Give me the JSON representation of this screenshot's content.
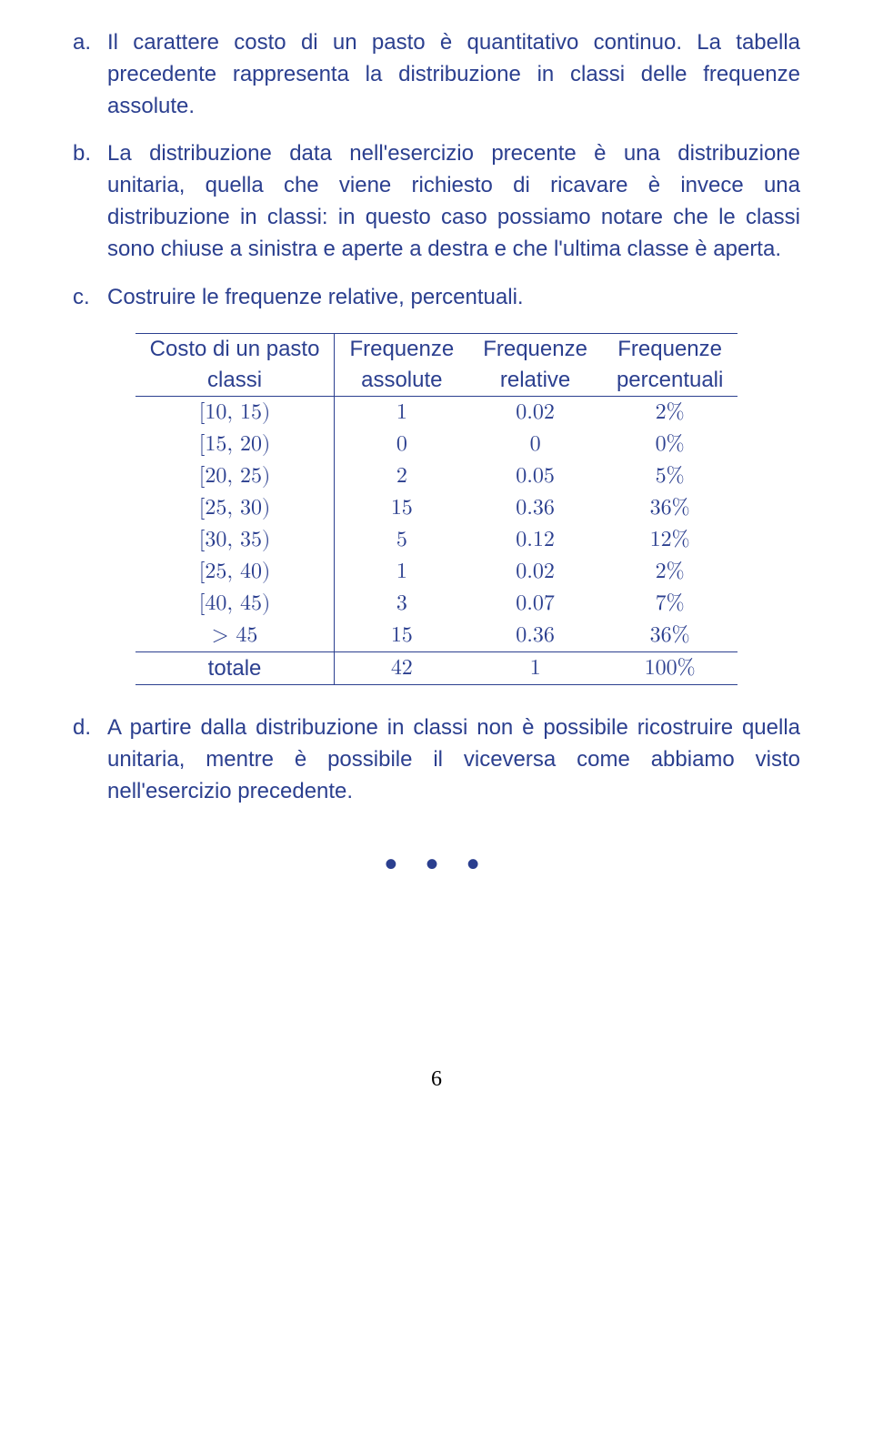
{
  "items": {
    "a": {
      "marker": "a.",
      "text": "Il carattere costo di un pasto è quantitativo continuo. La tabella precedente rappresenta la distribuzione in classi delle frequenze assolute."
    },
    "b": {
      "marker": "b.",
      "text": "La distribuzione data nell'esercizio precente è una distribuzione unitaria, quella che viene richiesto di ricavare è invece una distribuzione in classi: in questo caso possiamo notare che le classi sono chiuse a sinistra e aperte a destra e che l'ultima classe è aperta."
    },
    "c": {
      "marker": "c.",
      "text": "Costruire le frequenze relative, percentuali."
    },
    "d": {
      "marker": "d.",
      "text": "A partire dalla distribuzione in classi non è possibile ricostruire quella unitaria, mentre è possibile il viceversa come abbiamo visto nell'esercizio precedente."
    }
  },
  "table": {
    "header1": {
      "c1": "Costo di un pasto",
      "c2": "Frequenze",
      "c3": "Frequenze",
      "c4": "Frequenze"
    },
    "header2": {
      "c1": "classi",
      "c2": "assolute",
      "c3": "relative",
      "c4": "percentuali"
    },
    "rows": [
      {
        "c1": "[10, 15)",
        "c2": "1",
        "c3": "0.02",
        "c4": "2%"
      },
      {
        "c1": "[15, 20)",
        "c2": "0",
        "c3": "0",
        "c4": "0%"
      },
      {
        "c1": "[20, 25)",
        "c2": "2",
        "c3": "0.05",
        "c4": "5%"
      },
      {
        "c1": "[25, 30)",
        "c2": "15",
        "c3": "0.36",
        "c4": "36%"
      },
      {
        "c1": "[30, 35)",
        "c2": "5",
        "c3": "0.12",
        "c4": "12%"
      },
      {
        "c1": "[25, 40)",
        "c2": "1",
        "c3": "0.02",
        "c4": "2%"
      },
      {
        "c1": "[40, 45)",
        "c2": "3",
        "c3": "0.07",
        "c4": "7%"
      },
      {
        "c1": "> 45",
        "c2": "15",
        "c3": "0.36",
        "c4": "36%"
      }
    ],
    "total": {
      "c1": "totale",
      "c2": "42",
      "c3": "1",
      "c4": "100%"
    }
  },
  "dots": "• • •",
  "pagenum": "6"
}
